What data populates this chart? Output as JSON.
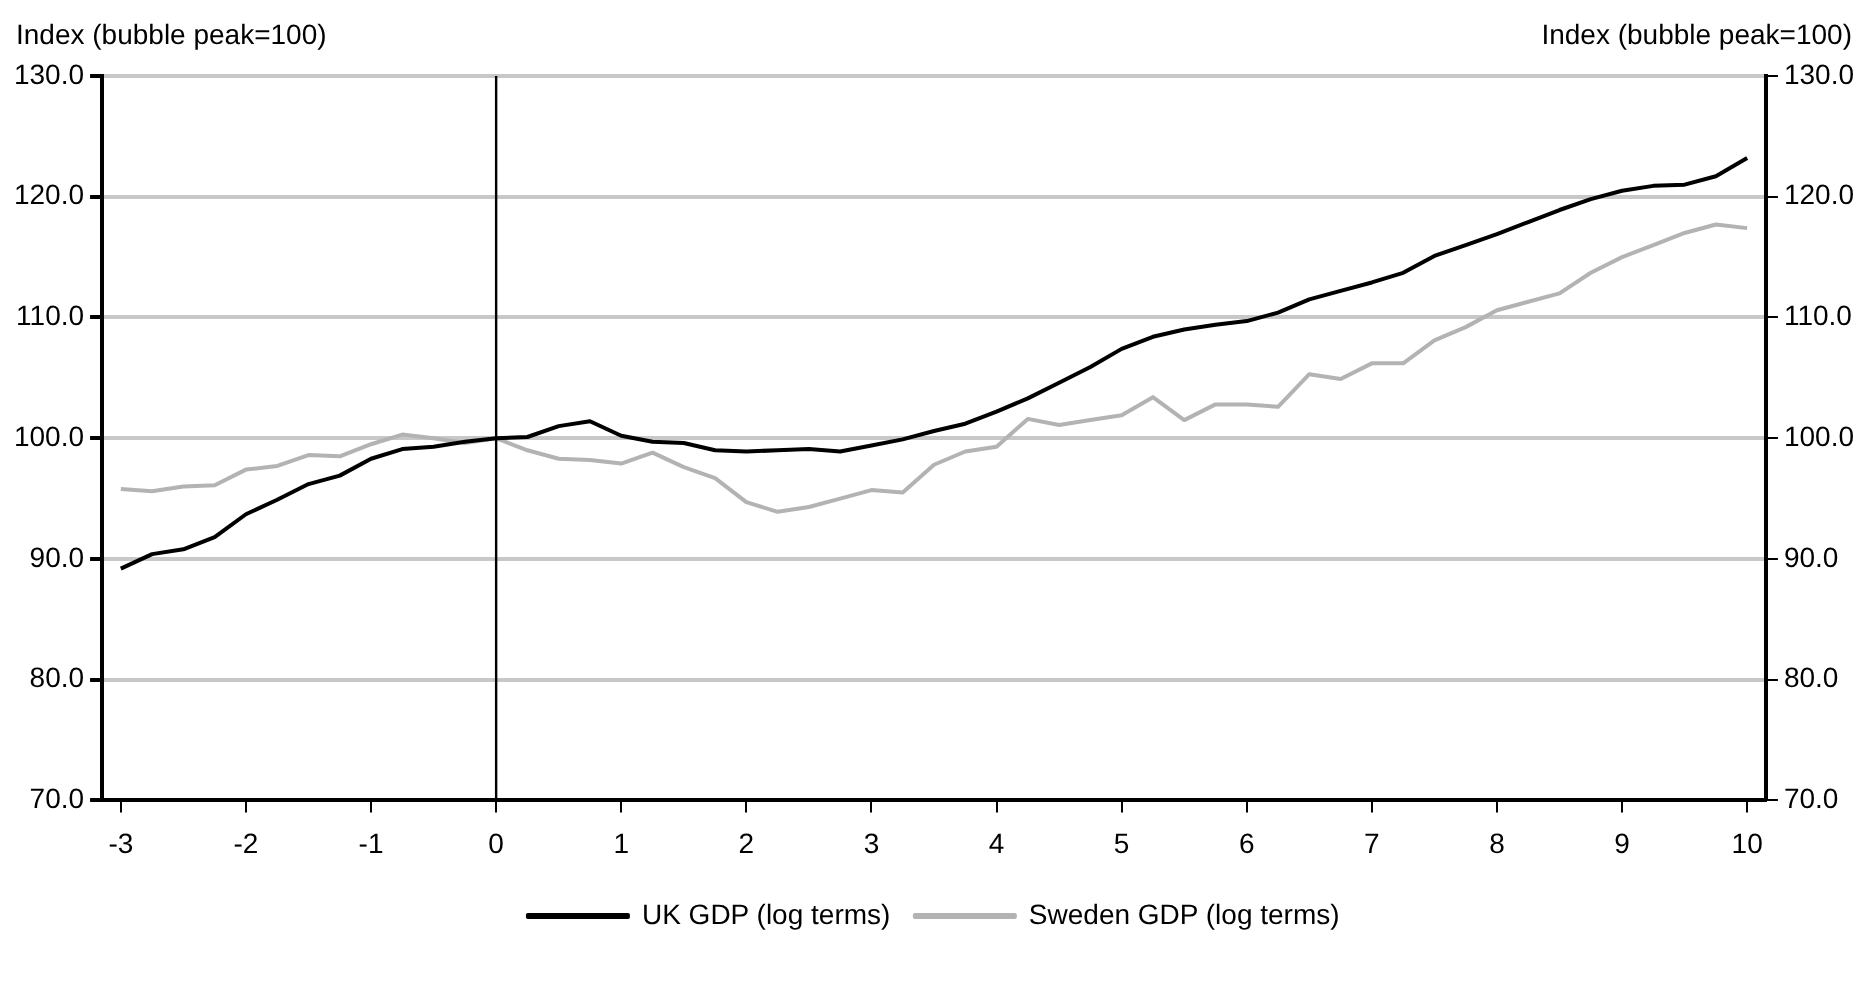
{
  "chart_data": {
    "type": "line",
    "ylabel": "Index (bubble peak=100)",
    "y2label": "Index (bubble peak=100)",
    "x": [
      -3,
      -2.75,
      -2.5,
      -2.25,
      -2,
      -1.75,
      -1.5,
      -1.25,
      -1,
      -0.75,
      -0.5,
      -0.25,
      0,
      0.25,
      0.5,
      0.75,
      1,
      1.25,
      1.5,
      1.75,
      2,
      2.25,
      2.5,
      2.75,
      3,
      3.25,
      3.5,
      3.75,
      4,
      4.25,
      4.5,
      4.75,
      5,
      5.25,
      5.5,
      5.75,
      6,
      6.25,
      6.5,
      6.75,
      7,
      7.25,
      7.5,
      7.75,
      8,
      8.25,
      8.5,
      8.75,
      9,
      9.25,
      9.5,
      9.75,
      10
    ],
    "series": [
      {
        "name": "UK GDP (log terms)",
        "color": "#000000",
        "values": [
          89.2,
          90.4,
          90.8,
          91.8,
          93.7,
          94.9,
          96.2,
          96.9,
          98.3,
          99.1,
          99.3,
          99.7,
          100.0,
          100.1,
          101.0,
          101.4,
          100.2,
          99.7,
          99.6,
          99.0,
          98.9,
          99.0,
          99.1,
          98.9,
          99.4,
          99.9,
          100.6,
          101.2,
          102.2,
          103.3,
          104.6,
          105.9,
          107.4,
          108.4,
          109.0,
          109.4,
          109.7,
          110.4,
          111.5,
          112.2,
          112.9,
          113.7,
          115.1,
          116.0,
          116.9,
          117.9,
          118.9,
          119.8,
          120.5,
          120.9,
          121.0,
          121.7,
          123.2
        ]
      },
      {
        "name": "Sweden GDP (log terms)",
        "color": "#b3b3b3",
        "values": [
          95.8,
          95.6,
          96.0,
          96.1,
          97.4,
          97.7,
          98.6,
          98.5,
          99.5,
          100.3,
          100.0,
          99.6,
          100.0,
          99.0,
          98.3,
          98.2,
          97.9,
          98.8,
          97.6,
          96.7,
          94.7,
          93.9,
          94.3,
          95.0,
          95.7,
          95.5,
          97.8,
          98.9,
          99.3,
          101.6,
          101.1,
          101.5,
          101.9,
          103.4,
          101.5,
          102.8,
          102.8,
          102.6,
          105.3,
          104.9,
          106.2,
          106.2,
          108.1,
          109.2,
          110.6,
          111.3,
          112.0,
          113.7,
          115.0,
          116.0,
          117.0,
          117.7,
          117.4
        ]
      }
    ],
    "xlim": [
      -3.15,
      10.15
    ],
    "xticks": [
      -3,
      -2,
      -1,
      0,
      1,
      2,
      3,
      4,
      5,
      6,
      7,
      8,
      9,
      10
    ],
    "ylim": [
      70,
      130
    ],
    "yticks": [
      {
        "value": 70,
        "label": "70.0"
      },
      {
        "value": 80,
        "label": "80.0"
      },
      {
        "value": 90,
        "label": "90.0"
      },
      {
        "value": 100,
        "label": "100.0"
      },
      {
        "value": 110,
        "label": "110.0"
      },
      {
        "value": 120,
        "label": "120.0"
      },
      {
        "value": 130,
        "label": "130.0"
      }
    ],
    "y2lim": [
      70,
      130
    ],
    "y2ticks": [
      {
        "value": 70,
        "label": "70.0"
      },
      {
        "value": 80,
        "label": "80.0"
      },
      {
        "value": 90,
        "label": "90.0"
      },
      {
        "value": 100,
        "label": "100.0"
      },
      {
        "value": 110,
        "label": "110.0"
      },
      {
        "value": 120,
        "label": "120.0"
      },
      {
        "value": 130,
        "label": "130.0"
      }
    ],
    "ref_lines": [
      {
        "axis": "x",
        "value": 0,
        "color": "#000000"
      }
    ],
    "grid": "y",
    "legend": "bottom",
    "marker": "none",
    "line_style": "solid"
  }
}
